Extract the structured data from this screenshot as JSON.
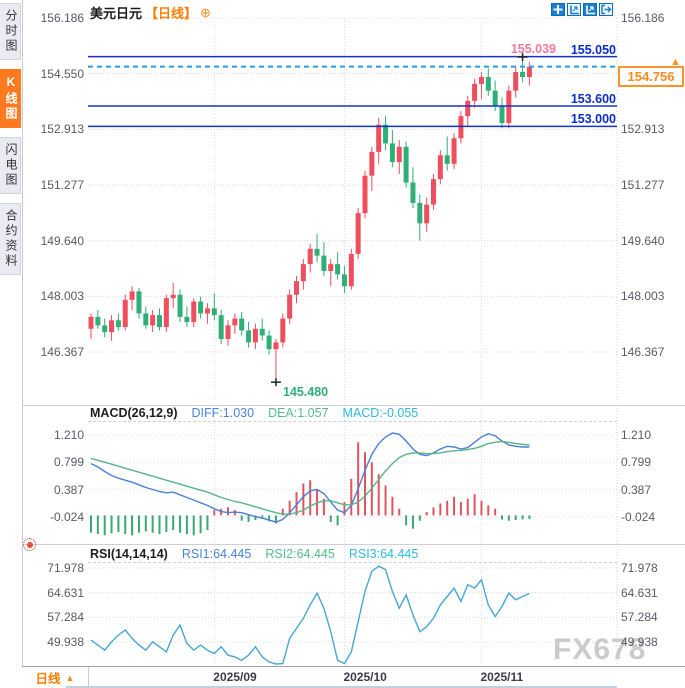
{
  "sidebar": {
    "tabs": [
      {
        "label": "分时图",
        "active": false
      },
      {
        "label": "K线图",
        "active": true
      },
      {
        "label": "闪电图",
        "active": false
      },
      {
        "label": "合约资料",
        "active": false
      }
    ]
  },
  "header": {
    "symbol": "美元日元",
    "period": "【日线】",
    "add_icon": "⊕",
    "toolbar_icons": [
      "crosshair-pan",
      "axis-scale",
      "auto-scroll",
      "exit-fullview"
    ]
  },
  "main_chart": {
    "y_tick_labels": [
      "156.186",
      "154.550",
      "152.913",
      "151.277",
      "149.640",
      "148.003",
      "146.367"
    ],
    "annotations": {
      "high_label": {
        "text": "155.039",
        "value": 155.039
      },
      "resistance": {
        "text": "155.050",
        "value": 155.05
      },
      "mid_level": {
        "text": "153.600",
        "value": 153.6
      },
      "support": {
        "text": "153.000",
        "value": 153.0
      },
      "low_label": {
        "text": "145.480",
        "value": 145.48
      },
      "last_price": {
        "text": "154.756",
        "value": 154.756,
        "arrow": "▲"
      }
    }
  },
  "macd_panel": {
    "title": "MACD(26,12,9)",
    "diff_label": "DIFF:1.030",
    "dea_label": "DEA:1.057",
    "macd_label": "MACD:-0.055",
    "y_tick_labels": [
      "1.210",
      "0.799",
      "0.387",
      "-0.024"
    ]
  },
  "rsi_panel": {
    "title": "RSI(14,14,14)",
    "rsi1_label": "RSI1:64.445",
    "rsi2_label": "RSI2:64.445",
    "rsi3_label": "RSI3:64.445",
    "y_tick_labels": [
      "71.978",
      "64.631",
      "57.284",
      "49.938"
    ]
  },
  "bottom_bar": {
    "period": "日线",
    "arrow": "▲",
    "x_labels": [
      "2025/09",
      "2025/10",
      "2025/11"
    ]
  },
  "watermark": "FX678",
  "colors": {
    "up": "#ef4e5e",
    "down": "#2eaf77",
    "level_line": "#1632c6",
    "last_line": "#2a9ce8",
    "diff_line": "#4b7fd8",
    "dea_line": "#57b488",
    "rsi_line": "#45a6d6",
    "hist_up": "#e0535f",
    "hist_down": "#3aa874",
    "grid": "#d9d9de",
    "accent_orange": "#ff7d00",
    "label_blue": "#0b2cc8",
    "high_pink": "#f2789c",
    "low_green": "#2fae77"
  },
  "chart_data": [
    {
      "type": "candlestick",
      "title": "美元日元 日线",
      "x_labels": [
        "2025/09",
        "2025/10",
        "2025/11"
      ],
      "month_start_indices": [
        18,
        37,
        57
      ],
      "y_ticks": [
        156.186,
        154.55,
        152.913,
        151.277,
        149.64,
        148.003,
        146.367
      ],
      "levels": [
        {
          "value": 155.05,
          "style": "solid"
        },
        {
          "value": 153.6,
          "style": "solid"
        },
        {
          "value": 153.0,
          "style": "solid"
        },
        {
          "value": 154.756,
          "style": "dashed"
        }
      ],
      "high_marker": {
        "index": 63,
        "price": 155.039
      },
      "low_marker": {
        "index": 27,
        "price": 145.48
      },
      "ohlc": [
        [
          147.05,
          147.5,
          146.75,
          147.4
        ],
        [
          147.4,
          147.6,
          147.05,
          147.15
        ],
        [
          147.15,
          147.35,
          146.8,
          146.95
        ],
        [
          146.95,
          147.45,
          146.7,
          147.3
        ],
        [
          147.3,
          147.5,
          147.0,
          147.1
        ],
        [
          147.1,
          148.05,
          147.0,
          147.9
        ],
        [
          147.9,
          148.3,
          147.6,
          148.15
        ],
        [
          148.15,
          148.25,
          147.35,
          147.5
        ],
        [
          147.5,
          147.7,
          147.05,
          147.15
        ],
        [
          147.15,
          147.6,
          146.95,
          147.45
        ],
        [
          147.45,
          147.65,
          147.0,
          147.1
        ],
        [
          147.1,
          148.05,
          146.95,
          147.95
        ],
        [
          147.95,
          148.4,
          147.65,
          148.05
        ],
        [
          148.05,
          148.2,
          147.25,
          147.4
        ],
        [
          147.4,
          147.7,
          147.1,
          147.25
        ],
        [
          147.25,
          147.95,
          147.1,
          147.85
        ],
        [
          147.85,
          148.0,
          147.35,
          147.5
        ],
        [
          147.5,
          147.8,
          147.2,
          147.65
        ],
        [
          147.65,
          148.1,
          147.3,
          147.45
        ],
        [
          147.45,
          147.6,
          146.6,
          146.75
        ],
        [
          146.75,
          147.3,
          146.55,
          147.15
        ],
        [
          147.15,
          147.5,
          146.9,
          147.35
        ],
        [
          147.35,
          147.55,
          146.85,
          147.0
        ],
        [
          147.0,
          147.25,
          146.5,
          146.65
        ],
        [
          146.65,
          147.2,
          146.45,
          147.05
        ],
        [
          147.05,
          147.35,
          146.7,
          146.85
        ],
        [
          146.85,
          147.0,
          146.3,
          146.45
        ],
        [
          146.45,
          146.75,
          145.48,
          146.65
        ],
        [
          146.65,
          147.5,
          146.5,
          147.35
        ],
        [
          147.35,
          148.2,
          147.2,
          148.05
        ],
        [
          148.05,
          148.6,
          147.8,
          148.45
        ],
        [
          148.45,
          149.1,
          148.2,
          148.95
        ],
        [
          148.95,
          149.55,
          148.7,
          149.4
        ],
        [
          149.4,
          149.85,
          149.0,
          149.2
        ],
        [
          149.2,
          149.6,
          148.6,
          148.75
        ],
        [
          148.75,
          149.1,
          148.3,
          148.95
        ],
        [
          148.95,
          149.3,
          148.5,
          148.65
        ],
        [
          148.65,
          148.9,
          148.1,
          148.3
        ],
        [
          148.3,
          149.4,
          148.2,
          149.25
        ],
        [
          149.25,
          150.6,
          149.1,
          150.45
        ],
        [
          150.45,
          151.7,
          150.3,
          151.55
        ],
        [
          151.55,
          152.4,
          151.1,
          152.25
        ],
        [
          152.25,
          153.25,
          151.9,
          153.05
        ],
        [
          153.05,
          153.3,
          152.3,
          152.5
        ],
        [
          152.5,
          152.9,
          151.8,
          151.95
        ],
        [
          151.95,
          152.6,
          151.6,
          152.4
        ],
        [
          152.4,
          152.55,
          151.2,
          151.35
        ],
        [
          151.35,
          151.8,
          150.6,
          150.75
        ],
        [
          150.75,
          151.0,
          149.64,
          150.15
        ],
        [
          150.15,
          150.9,
          149.9,
          150.7
        ],
        [
          150.7,
          151.6,
          150.55,
          151.45
        ],
        [
          151.45,
          152.3,
          151.3,
          152.15
        ],
        [
          152.15,
          152.7,
          151.7,
          151.9
        ],
        [
          151.9,
          152.8,
          151.75,
          152.65
        ],
        [
          152.65,
          153.45,
          152.5,
          153.3
        ],
        [
          153.3,
          153.9,
          153.0,
          153.75
        ],
        [
          153.75,
          154.4,
          153.55,
          154.25
        ],
        [
          154.25,
          154.6,
          153.8,
          154.45
        ],
        [
          154.45,
          154.7,
          153.9,
          154.05
        ],
        [
          154.05,
          154.35,
          153.45,
          153.6
        ],
        [
          153.6,
          153.85,
          152.95,
          153.1
        ],
        [
          153.1,
          154.2,
          152.95,
          154.05
        ],
        [
          154.05,
          154.75,
          153.85,
          154.6
        ],
        [
          154.6,
          155.039,
          154.3,
          154.45
        ],
        [
          154.45,
          154.9,
          154.2,
          154.756
        ]
      ]
    },
    {
      "type": "line+bar",
      "title": "MACD(26,12,9)",
      "y_ticks": [
        1.21,
        0.799,
        0.387,
        -0.024
      ],
      "series": [
        {
          "name": "DIFF",
          "last": 1.03,
          "values": [
            0.78,
            0.73,
            0.66,
            0.6,
            0.56,
            0.53,
            0.5,
            0.46,
            0.42,
            0.39,
            0.36,
            0.34,
            0.35,
            0.31,
            0.27,
            0.23,
            0.19,
            0.15,
            0.1,
            0.06,
            0.04,
            0.05,
            0.04,
            0.01,
            -0.02,
            -0.04,
            -0.07,
            -0.1,
            -0.06,
            0.04,
            0.16,
            0.28,
            0.37,
            0.39,
            0.33,
            0.2,
            0.08,
            0.04,
            0.15,
            0.4,
            0.68,
            0.92,
            1.08,
            1.18,
            1.24,
            1.22,
            1.12,
            1.0,
            0.92,
            0.9,
            0.94,
            1.0,
            1.04,
            1.03,
            1.0,
            1.02,
            1.1,
            1.18,
            1.23,
            1.2,
            1.12,
            1.06,
            1.04,
            1.03,
            1.03
          ]
        },
        {
          "name": "DEA",
          "last": 1.057,
          "values": [
            0.86,
            0.83,
            0.8,
            0.77,
            0.74,
            0.71,
            0.68,
            0.65,
            0.62,
            0.59,
            0.56,
            0.53,
            0.5,
            0.47,
            0.44,
            0.41,
            0.38,
            0.35,
            0.31,
            0.27,
            0.24,
            0.21,
            0.19,
            0.16,
            0.13,
            0.1,
            0.07,
            0.04,
            0.02,
            0.02,
            0.04,
            0.08,
            0.14,
            0.19,
            0.22,
            0.22,
            0.19,
            0.16,
            0.16,
            0.2,
            0.29,
            0.41,
            0.54,
            0.67,
            0.78,
            0.87,
            0.92,
            0.94,
            0.94,
            0.93,
            0.93,
            0.94,
            0.96,
            0.97,
            0.98,
            0.99,
            1.01,
            1.04,
            1.08,
            1.1,
            1.11,
            1.1,
            1.08,
            1.07,
            1.06
          ]
        },
        {
          "name": "MACD",
          "last": -0.055,
          "values": [
            -0.26,
            -0.28,
            -0.3,
            -0.27,
            -0.25,
            -0.28,
            -0.3,
            -0.26,
            -0.24,
            -0.26,
            -0.28,
            -0.25,
            -0.22,
            -0.26,
            -0.28,
            -0.3,
            -0.27,
            -0.22,
            0.08,
            0.1,
            0.12,
            0.08,
            -0.08,
            -0.1,
            -0.07,
            -0.05,
            -0.09,
            -0.12,
            0.1,
            0.22,
            0.35,
            0.48,
            0.53,
            0.4,
            0.25,
            -0.1,
            -0.15,
            0.2,
            0.55,
            1.1,
            0.95,
            0.8,
            0.62,
            0.45,
            0.28,
            0.1,
            -0.15,
            -0.2,
            -0.08,
            0.05,
            0.12,
            0.18,
            0.22,
            0.28,
            0.2,
            0.25,
            0.32,
            0.22,
            0.15,
            0.1,
            -0.06,
            -0.08,
            -0.07,
            -0.06,
            -0.055
          ]
        }
      ]
    },
    {
      "type": "line",
      "title": "RSI(14,14,14)",
      "y_ticks": [
        71.978,
        64.631,
        57.284,
        49.938
      ],
      "series": [
        {
          "name": "RSI1",
          "last": 64.445,
          "values": [
            50.5,
            49,
            47.5,
            50,
            52,
            53.5,
            51,
            49,
            47.5,
            50,
            48.5,
            47,
            52,
            55,
            49.5,
            47.5,
            49,
            47.5,
            46.5,
            48.5,
            46,
            45.5,
            44.5,
            46,
            48.5,
            45.5,
            44,
            43,
            43.5,
            51,
            54,
            57,
            61,
            64.5,
            60,
            53,
            44.5,
            43.5,
            47,
            56,
            65,
            71,
            72.5,
            71.5,
            65,
            60,
            64,
            58,
            53,
            54.5,
            57,
            61,
            63.5,
            66,
            62,
            67,
            66,
            68.5,
            61,
            57.5,
            60.5,
            64.5,
            62.5,
            63.5,
            64.4
          ]
        }
      ]
    }
  ]
}
